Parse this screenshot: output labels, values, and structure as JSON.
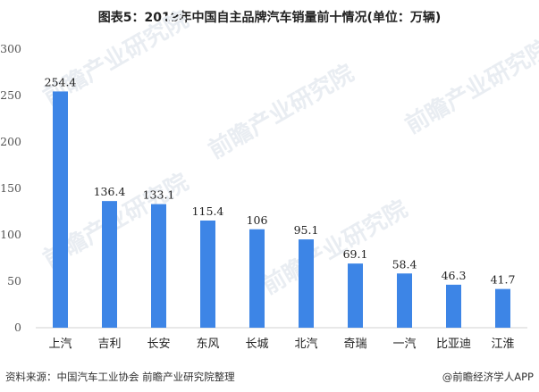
{
  "chart_data": {
    "type": "bar",
    "title": "图表5：2019年中国自主品牌汽车销量前十情况(单位：万辆)",
    "categories": [
      "上汽",
      "吉利",
      "长安",
      "东风",
      "长城",
      "北汽",
      "奇瑞",
      "一汽",
      "比亚迪",
      "江淮"
    ],
    "values": [
      254.4,
      136.4,
      133.1,
      115.4,
      106,
      95.1,
      69.1,
      58.4,
      46.3,
      41.7
    ],
    "value_labels": [
      "254.4",
      "136.4",
      "133.1",
      "115.4",
      "106",
      "95.1",
      "69.1",
      "58.4",
      "46.3",
      "41.7"
    ],
    "ylim": [
      0,
      300
    ],
    "yticks": [
      0,
      50,
      100,
      150,
      200,
      250,
      300
    ],
    "xlabel": "",
    "ylabel": "",
    "grid": false,
    "legend": "none",
    "bar_color": "#3d85e6"
  },
  "footer": {
    "source": "资料来源：中国汽车工业协会 前瞻产业研究院整理",
    "brand": "@前瞻经济学人APP"
  },
  "watermark": {
    "text": "前瞻产业研究院"
  }
}
